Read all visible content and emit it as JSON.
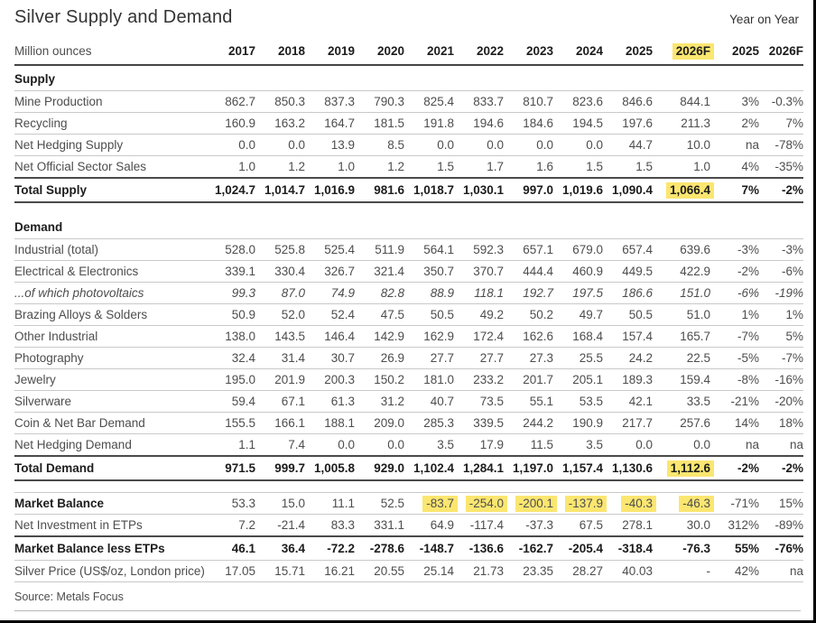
{
  "header": {
    "title": "Silver Supply and Demand",
    "year_on_year": "Year on Year"
  },
  "footer": {
    "source": "Source: Metals Focus"
  },
  "colors": {
    "highlight": "#fbe670",
    "rule_light": "#c9c9c9",
    "rule_dark": "#4a4a4a"
  },
  "table": {
    "unit_label": "Million ounces",
    "columns": [
      {
        "label": "2017"
      },
      {
        "label": "2018"
      },
      {
        "label": "2019"
      },
      {
        "label": "2020"
      },
      {
        "label": "2021"
      },
      {
        "label": "2022"
      },
      {
        "label": "2023"
      },
      {
        "label": "2024"
      },
      {
        "label": "2025"
      },
      {
        "label": "2026F",
        "highlight": true
      },
      {
        "label": "2025"
      },
      {
        "label": "2026F"
      }
    ],
    "rows": [
      {
        "type": "section",
        "label": "Supply",
        "border_bottom": "light"
      },
      {
        "type": "data",
        "label": "Mine Production",
        "values": [
          "862.7",
          "850.3",
          "837.3",
          "790.3",
          "825.4",
          "833.7",
          "810.7",
          "823.6",
          "846.6",
          "844.1",
          "3%",
          "-0.3%"
        ],
        "border_bottom": "light"
      },
      {
        "type": "data",
        "label": "Recycling",
        "values": [
          "160.9",
          "163.2",
          "164.7",
          "181.5",
          "191.8",
          "194.6",
          "184.6",
          "194.5",
          "197.6",
          "211.3",
          "2%",
          "7%"
        ],
        "border_bottom": "light"
      },
      {
        "type": "data",
        "label": "Net Hedging Supply",
        "values": [
          "0.0",
          "0.0",
          "13.9",
          "8.5",
          "0.0",
          "0.0",
          "0.0",
          "0.0",
          "44.7",
          "10.0",
          "na",
          "-78%"
        ],
        "border_bottom": "light"
      },
      {
        "type": "data",
        "label": "Net Official Sector Sales",
        "values": [
          "1.0",
          "1.2",
          "1.0",
          "1.2",
          "1.5",
          "1.7",
          "1.6",
          "1.5",
          "1.5",
          "1.0",
          "4%",
          "-35%"
        ],
        "border_bottom": "dark"
      },
      {
        "type": "total",
        "label": "Total Supply",
        "values": [
          "1,024.7",
          "1,014.7",
          "1,016.9",
          "981.6",
          "1,018.7",
          "1,030.1",
          "997.0",
          "1,019.6",
          "1,090.4",
          "1,066.4",
          "7%",
          "-2%"
        ],
        "highlight": [
          9
        ],
        "border_bottom": "dark"
      },
      {
        "type": "gap"
      },
      {
        "type": "section",
        "label": "Demand",
        "border_bottom": "light"
      },
      {
        "type": "data",
        "label": "Industrial (total)",
        "values": [
          "528.0",
          "525.8",
          "525.4",
          "511.9",
          "564.1",
          "592.3",
          "657.1",
          "679.0",
          "657.4",
          "639.6",
          "-3%",
          "-3%"
        ],
        "border_bottom": "light"
      },
      {
        "type": "data",
        "label": "Electrical & Electronics",
        "indent": 1,
        "values": [
          "339.1",
          "330.4",
          "326.7",
          "321.4",
          "350.7",
          "370.7",
          "444.4",
          "460.9",
          "449.5",
          "422.9",
          "-2%",
          "-6%"
        ],
        "border_bottom": "light"
      },
      {
        "type": "data",
        "label": "...of which photovoltaics",
        "indent": 2,
        "italic": true,
        "values": [
          "99.3",
          "87.0",
          "74.9",
          "82.8",
          "88.9",
          "118.1",
          "192.7",
          "197.5",
          "186.6",
          "151.0",
          "-6%",
          "-19%"
        ],
        "border_bottom": "light"
      },
      {
        "type": "data",
        "label": "Brazing Alloys & Solders",
        "indent": 1,
        "values": [
          "50.9",
          "52.0",
          "52.4",
          "47.5",
          "50.5",
          "49.2",
          "50.2",
          "49.7",
          "50.5",
          "51.0",
          "1%",
          "1%"
        ],
        "border_bottom": "light"
      },
      {
        "type": "data",
        "label": "Other Industrial",
        "indent": 1,
        "values": [
          "138.0",
          "143.5",
          "146.4",
          "142.9",
          "162.9",
          "172.4",
          "162.6",
          "168.4",
          "157.4",
          "165.7",
          "-7%",
          "5%"
        ],
        "border_bottom": "light"
      },
      {
        "type": "data",
        "label": "Photography",
        "values": [
          "32.4",
          "31.4",
          "30.7",
          "26.9",
          "27.7",
          "27.7",
          "27.3",
          "25.5",
          "24.2",
          "22.5",
          "-5%",
          "-7%"
        ],
        "border_bottom": "light"
      },
      {
        "type": "data",
        "label": "Jewelry",
        "values": [
          "195.0",
          "201.9",
          "200.3",
          "150.2",
          "181.0",
          "233.2",
          "201.7",
          "205.1",
          "189.3",
          "159.4",
          "-8%",
          "-16%"
        ],
        "border_bottom": "light"
      },
      {
        "type": "data",
        "label": "Silverware",
        "values": [
          "59.4",
          "67.1",
          "61.3",
          "31.2",
          "40.7",
          "73.5",
          "55.1",
          "53.5",
          "42.1",
          "33.5",
          "-21%",
          "-20%"
        ],
        "border_bottom": "light"
      },
      {
        "type": "data",
        "label": "Coin & Net Bar Demand",
        "values": [
          "155.5",
          "166.1",
          "188.1",
          "209.0",
          "285.3",
          "339.5",
          "244.2",
          "190.9",
          "217.7",
          "257.6",
          "14%",
          "18%"
        ],
        "border_bottom": "light"
      },
      {
        "type": "data",
        "label": "Net Hedging Demand",
        "values": [
          "1.1",
          "7.4",
          "0.0",
          "0.0",
          "3.5",
          "17.9",
          "11.5",
          "3.5",
          "0.0",
          "0.0",
          "na",
          "na"
        ],
        "border_bottom": "dark"
      },
      {
        "type": "total",
        "label": "Total Demand",
        "values": [
          "971.5",
          "999.7",
          "1,005.8",
          "929.0",
          "1,102.4",
          "1,284.1",
          "1,197.0",
          "1,157.4",
          "1,130.6",
          "1,112.6",
          "-2%",
          "-2%"
        ],
        "highlight": [
          9
        ],
        "border_bottom": "dark"
      },
      {
        "type": "gap"
      },
      {
        "type": "data",
        "label": "Market Balance",
        "label_bold": true,
        "values": [
          "53.3",
          "15.0",
          "11.1",
          "52.5",
          "-83.7",
          "-254.0",
          "-200.1",
          "-137.9",
          "-40.3",
          "-46.3",
          "-71%",
          "15%"
        ],
        "highlight": [
          4,
          5,
          6,
          7,
          8,
          9
        ],
        "border_top": "light",
        "border_bottom": "light"
      },
      {
        "type": "data",
        "label": "Net Investment in ETPs",
        "values": [
          "7.2",
          "-21.4",
          "83.3",
          "331.1",
          "64.9",
          "-117.4",
          "-37.3",
          "67.5",
          "278.1",
          "30.0",
          "312%",
          "-89%"
        ],
        "border_bottom": "dark"
      },
      {
        "type": "total",
        "label": "Market Balance less ETPs",
        "values": [
          "46.1",
          "36.4",
          "-72.2",
          "-278.6",
          "-148.7",
          "-136.6",
          "-162.7",
          "-205.4",
          "-318.4",
          "-76.3",
          "55%",
          "-76%"
        ],
        "border_bottom": "light"
      },
      {
        "type": "data",
        "label": "Silver Price (US$/oz, London price)",
        "values": [
          "17.05",
          "15.71",
          "16.21",
          "20.55",
          "25.14",
          "21.73",
          "23.35",
          "28.27",
          "40.03",
          "-",
          "42%",
          "na"
        ],
        "border_bottom": "light"
      }
    ]
  }
}
